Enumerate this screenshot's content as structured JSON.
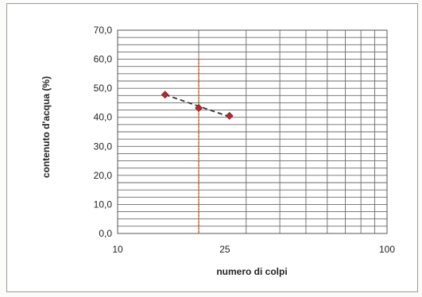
{
  "chart_data": {
    "type": "scatter",
    "title": "",
    "xlabel": "numero di colpi",
    "ylabel": "contenuto d'acqua (%)",
    "x_scale": "log",
    "xlim": [
      10,
      100
    ],
    "ylim": [
      0,
      70
    ],
    "y_ticks": [
      "0,0",
      "10,0",
      "20,0",
      "30,0",
      "40,0",
      "50,0",
      "60,0",
      "70,0"
    ],
    "x_ticks": [
      {
        "value": 10,
        "label": "10"
      },
      {
        "value": 25,
        "label": "25"
      },
      {
        "value": 100,
        "label": "100"
      }
    ],
    "grid": true,
    "points": {
      "x": [
        15,
        20,
        26
      ],
      "y": [
        47.8,
        43.2,
        40.5
      ],
      "color": "#b5282e"
    },
    "trendline": {
      "style": "dashed",
      "color": "#333333",
      "x": [
        15,
        26
      ],
      "y": [
        47.8,
        40.2
      ]
    },
    "reference_line": {
      "x": 20,
      "color": "#e0601a",
      "style": "dotted",
      "y_top": 60
    }
  }
}
